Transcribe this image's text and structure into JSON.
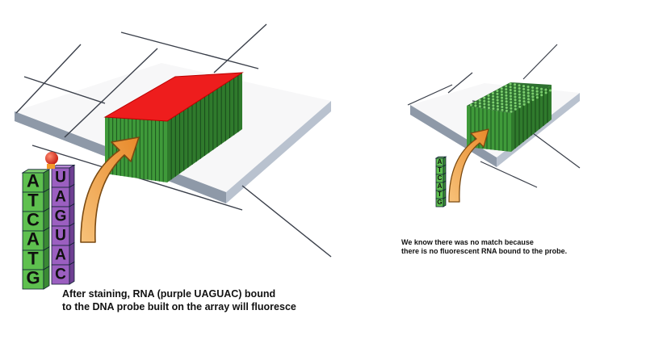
{
  "left_panel": {
    "caption": [
      "After staining, RNA (purple UAGUAC) bound",
      "to the DNA probe built on the array will fluoresce"
    ],
    "dna_strand": [
      "A",
      "T",
      "C",
      "A",
      "T",
      "G"
    ],
    "rna_strand": [
      "U",
      "A",
      "G",
      "U",
      "A",
      "C"
    ],
    "probe_state": "fluorescent"
  },
  "right_panel": {
    "caption": [
      "We know there was no match because",
      "there is no fluorescent RNA bound to the probe."
    ],
    "dna_strand": [
      "A",
      "T",
      "C",
      "A",
      "T",
      "G"
    ],
    "probe_state": "no-match"
  },
  "colors": {
    "fluorescent_top": "#ee1d1d",
    "probe_green": "#3f9a3a",
    "probe_dark": "#1f5c21",
    "dna_green": "#5ec04f",
    "rna_purple": "#9b5fc0",
    "arrow_orange": "#f1a23c",
    "marker_red": "#e03a2a"
  }
}
